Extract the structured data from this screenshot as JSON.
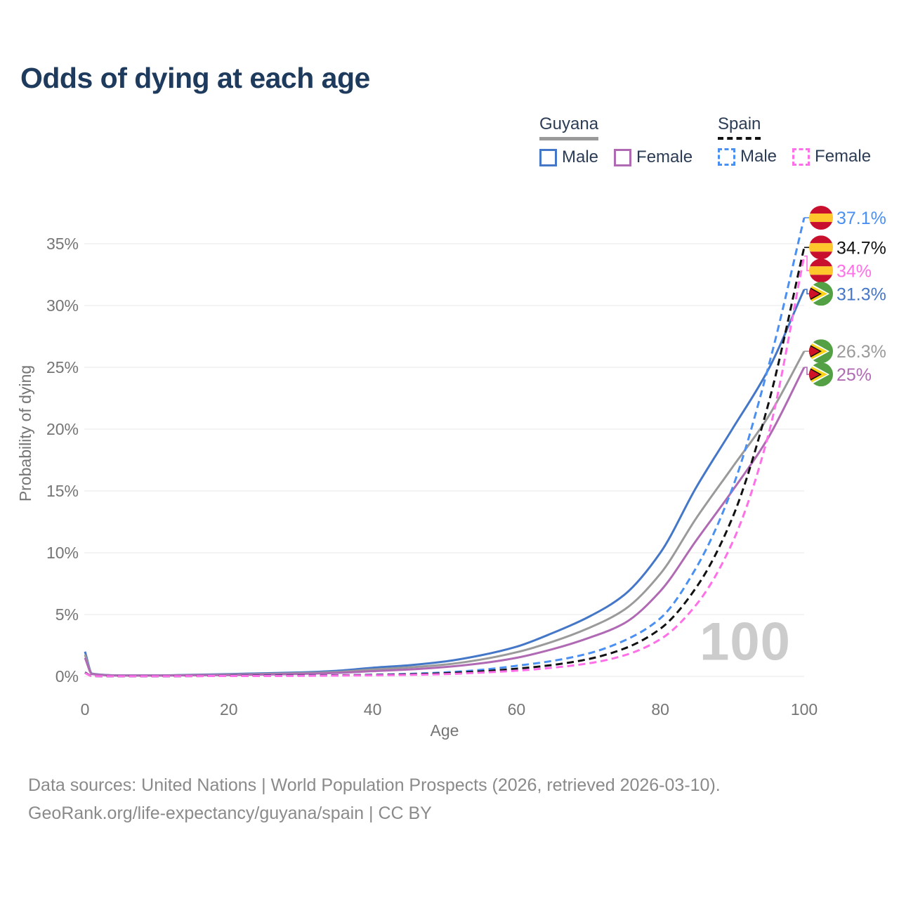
{
  "header": {
    "title": "Odds of dying at each age",
    "color": "#1e3a5c"
  },
  "legend": {
    "text_color": "#2c3c55",
    "groups": [
      {
        "title": "Guyana",
        "line_style": "solid",
        "line_color": "#9a9a9a",
        "items": [
          {
            "label": "Male",
            "color": "#4577c8",
            "style": "solid"
          },
          {
            "label": "Female",
            "color": "#b06ab4",
            "style": "solid"
          }
        ]
      },
      {
        "title": "Spain",
        "line_style": "dashed",
        "line_color": "#111111",
        "items": [
          {
            "label": "Male",
            "color": "#4a90f2",
            "style": "dashed"
          },
          {
            "label": "Female",
            "color": "#ff6fe8",
            "style": "dashed"
          }
        ]
      }
    ]
  },
  "chart_data": {
    "type": "line",
    "title": "Odds of dying at each age",
    "xlabel": "Age",
    "ylabel": "Probability of dying",
    "xlim": [
      0,
      100
    ],
    "ylim_percent": [
      0,
      38
    ],
    "x_ticks": [
      0,
      20,
      40,
      60,
      80,
      100
    ],
    "y_ticks": [
      {
        "value": 0,
        "label": "0%"
      },
      {
        "value": 5,
        "label": "5%"
      },
      {
        "value": 10,
        "label": "10%"
      },
      {
        "value": 15,
        "label": "15%"
      },
      {
        "value": 20,
        "label": "20%"
      },
      {
        "value": 25,
        "label": "25%"
      },
      {
        "value": 30,
        "label": "30%"
      },
      {
        "value": 35,
        "label": "35%"
      }
    ],
    "grid": "horizontal",
    "legend_position": "top-right",
    "watermark": "100",
    "ages": [
      0,
      1,
      5,
      10,
      15,
      20,
      25,
      30,
      35,
      40,
      45,
      50,
      55,
      60,
      65,
      70,
      75,
      80,
      85,
      90,
      95,
      100
    ],
    "series": [
      {
        "name": "Guyana Male",
        "country": "Guyana",
        "sex": "Male",
        "style": "solid",
        "color": "#4577c8",
        "flag": "guyana",
        "end_label": "31.3%",
        "values": [
          2.0,
          0.22,
          0.08,
          0.08,
          0.13,
          0.19,
          0.25,
          0.32,
          0.45,
          0.7,
          0.9,
          1.2,
          1.7,
          2.4,
          3.5,
          4.8,
          6.6,
          10.0,
          15.3,
          20.0,
          24.8,
          31.3
        ]
      },
      {
        "name": "Guyana Both sexes",
        "country": "Guyana",
        "sex": "Both",
        "style": "solid",
        "color": "#9a9a9a",
        "flag": "guyana",
        "end_label": "26.3%",
        "values": [
          1.75,
          0.2,
          0.07,
          0.07,
          0.11,
          0.15,
          0.2,
          0.26,
          0.36,
          0.55,
          0.72,
          0.95,
          1.35,
          1.95,
          2.8,
          3.9,
          5.4,
          8.3,
          12.8,
          16.9,
          21.0,
          26.3
        ]
      },
      {
        "name": "Guyana Female",
        "country": "Guyana",
        "sex": "Female",
        "style": "solid",
        "color": "#b06ab4",
        "flag": "guyana",
        "end_label": "25%",
        "values": [
          1.5,
          0.18,
          0.06,
          0.06,
          0.09,
          0.11,
          0.15,
          0.2,
          0.28,
          0.42,
          0.55,
          0.75,
          1.05,
          1.5,
          2.2,
          3.1,
          4.3,
          6.9,
          11.0,
          15.0,
          19.3,
          25.0
        ]
      },
      {
        "name": "Spain Male",
        "country": "Spain",
        "sex": "Male",
        "style": "dashed",
        "color": "#4a90f2",
        "flag": "spain",
        "end_label": "37.1%",
        "values": [
          0.32,
          0.03,
          0.01,
          0.01,
          0.03,
          0.05,
          0.06,
          0.07,
          0.09,
          0.13,
          0.2,
          0.32,
          0.52,
          0.85,
          1.25,
          1.85,
          2.9,
          4.7,
          8.8,
          15.2,
          25.0,
          37.1
        ]
      },
      {
        "name": "Spain Both sexes",
        "country": "Spain",
        "sex": "Both",
        "style": "dashed",
        "color": "#111111",
        "flag": "spain",
        "end_label": "34.7%",
        "values": [
          0.3,
          0.03,
          0.01,
          0.01,
          0.02,
          0.04,
          0.05,
          0.06,
          0.08,
          0.11,
          0.16,
          0.25,
          0.4,
          0.62,
          0.92,
          1.4,
          2.25,
          3.85,
          7.2,
          12.8,
          22.0,
          34.7
        ]
      },
      {
        "name": "Spain Female",
        "country": "Spain",
        "sex": "Female",
        "style": "dashed",
        "color": "#ff6fe8",
        "flag": "spain",
        "end_label": "34%",
        "values": [
          0.27,
          0.02,
          0.01,
          0.01,
          0.02,
          0.03,
          0.03,
          0.04,
          0.06,
          0.08,
          0.12,
          0.18,
          0.3,
          0.46,
          0.7,
          1.05,
          1.7,
          3.0,
          5.8,
          10.8,
          19.5,
          34.0
        ]
      }
    ],
    "axis_text_color": "#757575",
    "gridline_color": "#ededed",
    "flag_colors": {
      "spain_red": "#c8102e",
      "spain_yellow": "#ffc72c",
      "guyana_green": "#54a045",
      "guyana_yellow": "#fcd116",
      "guyana_red": "#ce1126",
      "guyana_white": "#ffffff",
      "guyana_black": "#111111"
    }
  },
  "footer": {
    "line1": "Data sources: United Nations | World Population Prospects (2026, retrieved 2026-03-10).",
    "line2": "GeoRank.org/life-expectancy/guyana/spain | CC BY",
    "color": "#8a8a8a"
  }
}
